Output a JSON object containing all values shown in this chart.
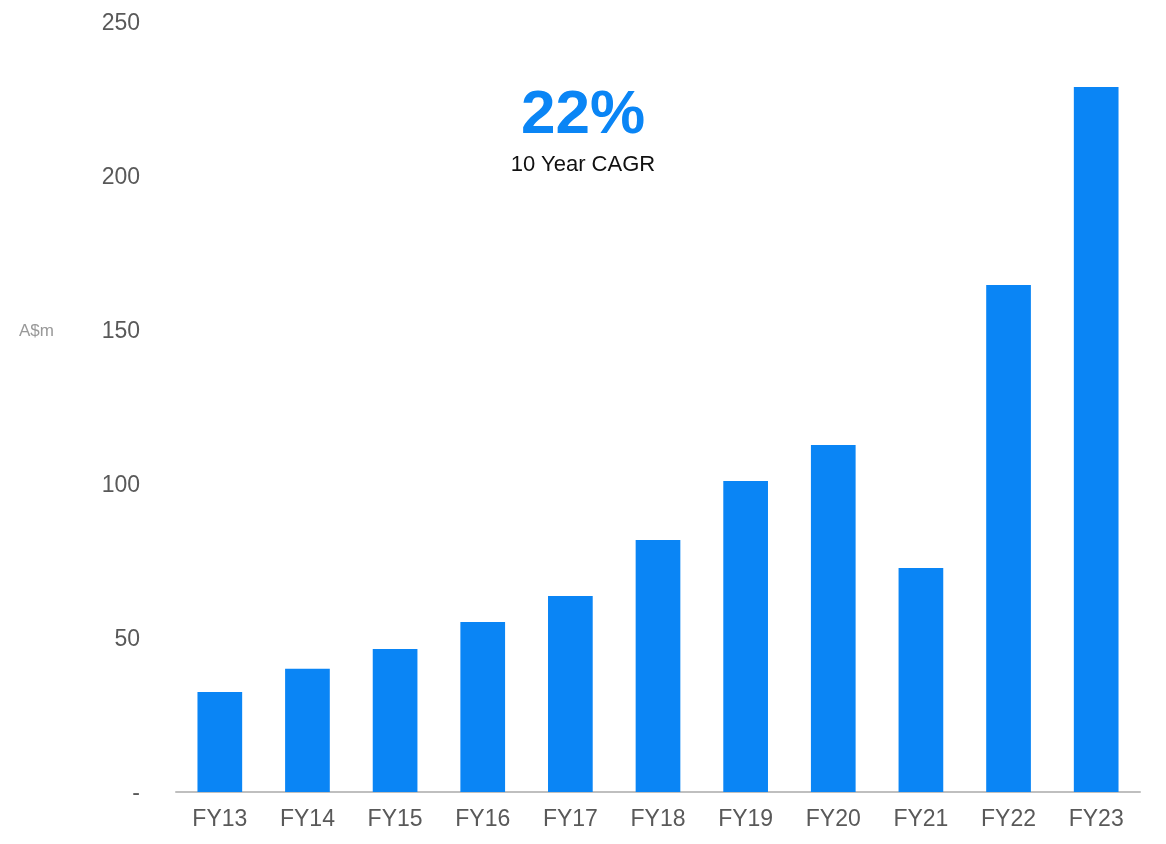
{
  "chart_data": {
    "type": "bar",
    "ylabel": "A$m",
    "annotations": [
      "22%",
      "10 Year CAGR"
    ],
    "categories": [
      "FY13",
      "FY14",
      "FY15",
      "FY16",
      "FY17",
      "FY18",
      "FY19",
      "FY20",
      "FY21",
      "FY22",
      "FY23"
    ],
    "values": [
      32.5,
      40,
      46.4,
      55.2,
      63.6,
      81.8,
      101,
      112.7,
      72.7,
      164.6,
      228.9
    ],
    "color": "#0a85f5",
    "ylim": [
      0,
      250
    ],
    "yticks": [
      {
        "value": 0,
        "label": "-"
      },
      50,
      100,
      150,
      200,
      250
    ],
    "grid": false
  }
}
